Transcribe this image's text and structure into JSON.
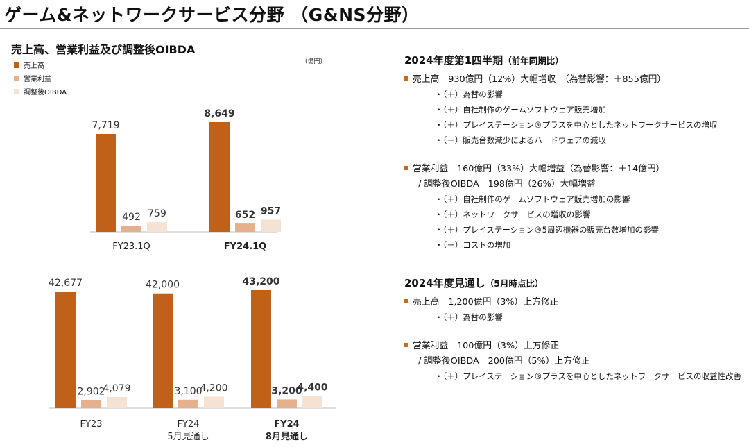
{
  "header": {
    "title": "ゲーム&ネットワークサービス分野 （G&NS分野）"
  },
  "left": {
    "subtitle": "売上高、営業利益及び調整後OIBDA",
    "unit": "(億円)",
    "legend": [
      {
        "label": "売上高",
        "color": "#c0611a"
      },
      {
        "label": "営業利益",
        "color": "#e7b08c"
      },
      {
        "label": "調整後OIBDA",
        "color": "#f6e2d3"
      }
    ]
  },
  "chart_data": [
    {
      "type": "bar",
      "categories": [
        "FY23.1Q",
        "FY24.1Q"
      ],
      "category_sublabels": [
        "",
        ""
      ],
      "bold_categories": [
        false,
        true
      ],
      "series": [
        {
          "name": "売上高",
          "values": [
            7719,
            8649
          ],
          "labels": [
            "7,719",
            "8,649"
          ]
        },
        {
          "name": "営業利益",
          "values": [
            492,
            652
          ],
          "labels": [
            "492",
            "652"
          ]
        },
        {
          "name": "調整後OIBDA",
          "values": [
            759,
            957
          ],
          "labels": [
            "759",
            "957"
          ]
        }
      ]
    },
    {
      "type": "bar",
      "categories": [
        "FY23",
        "FY24",
        "FY24"
      ],
      "category_sublabels": [
        "",
        "5月見通し",
        "8月見通し"
      ],
      "bold_categories": [
        false,
        false,
        true
      ],
      "series": [
        {
          "name": "売上高",
          "values": [
            42677,
            42000,
            43200
          ],
          "labels": [
            "42,677",
            "42,000",
            "43,200"
          ]
        },
        {
          "name": "営業利益",
          "values": [
            2902,
            3100,
            3200
          ],
          "labels": [
            "2,902",
            "3,100",
            "3,200"
          ]
        },
        {
          "name": "調整後OIBDA",
          "values": [
            4079,
            4200,
            4400
          ],
          "labels": [
            "4,079",
            "4,200",
            "4,400"
          ]
        }
      ]
    }
  ],
  "right": {
    "q1": {
      "title": "2024年度第1四半期",
      "title_paren": "（前年同期比）",
      "sales": "売上高　930億円（12%）大幅増収　（為替影響：＋855億円）",
      "sales_details": [
        "・（＋）為替の影響",
        "・（＋）自社制作のゲームソフトウェア販売増加",
        "・（＋）プレイステーション®プラスを中心としたネットワークサービスの増収",
        "・（－）販売台数減少によるハードウェアの減収"
      ],
      "op": "営業利益　160億円（33%）大幅増益（為替影響：＋14億円）",
      "oibda": "/ 調整後OIBDA　198億円（26%）大幅増益",
      "op_details": [
        "・（＋）自社制作のゲームソフトウェア販売増加の影響",
        "・（＋）ネットワークサービスの増収の影響",
        "・（＋）プレイステーション®5周辺機器の販売台数増加の影響",
        "・（－）コストの増加"
      ]
    },
    "fy": {
      "title": "2024年度見通し",
      "title_paren": "（5月時点比）",
      "sales": "売上高　1,200億円（3%）上方修正",
      "sales_details": [
        "・（＋）為替の影響"
      ],
      "op": "営業利益　100億円（3%）上方修正",
      "oibda": "/ 調整後OIBDA　200億円（5%）上方修正",
      "op_details": [
        "・（＋）プレイステーション®プラスを中心としたネットワークサービスの収益性改善"
      ]
    }
  }
}
